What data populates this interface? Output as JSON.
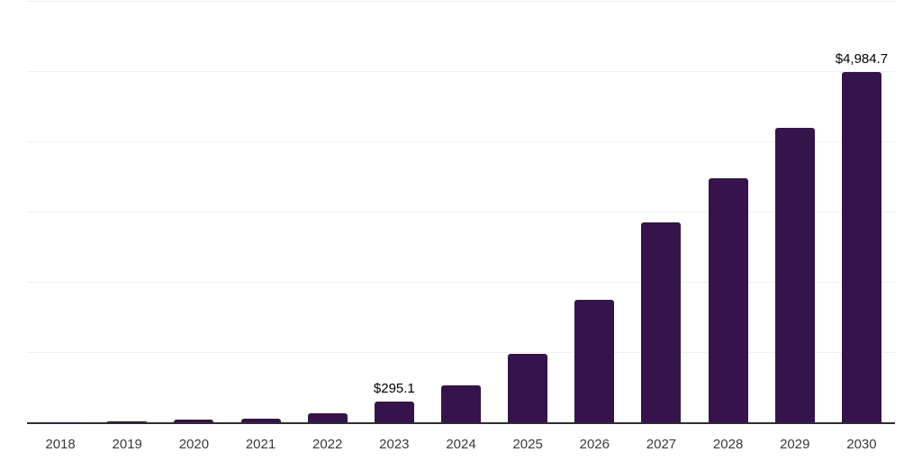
{
  "chart_data": {
    "type": "bar",
    "categories": [
      "2018",
      "2019",
      "2020",
      "2021",
      "2022",
      "2023",
      "2024",
      "2025",
      "2026",
      "2027",
      "2028",
      "2029",
      "2030"
    ],
    "values": [
      4,
      9,
      40,
      55,
      125,
      295.1,
      530,
      980,
      1740,
      2850,
      3480,
      4195,
      4984.7
    ],
    "value_labels": [
      "",
      "",
      "",
      "",
      "",
      "$295.1",
      "",
      "",
      "",
      "",
      "",
      "",
      "$4,984.7"
    ],
    "annotated_points": [
      {
        "category": "2023",
        "label": "$295.1"
      },
      {
        "category": "2030",
        "label": "$4,984.7"
      }
    ],
    "ylim": [
      0,
      6000
    ],
    "gridline_step": 1000,
    "grid": "horizontal",
    "legend": "none",
    "colors": {
      "bar": "#36134A",
      "axis_line": "#2e2e2e",
      "gridline": "#f0f0f0",
      "tick_label": "#3a3a3a",
      "value_label": "#000000",
      "background": "#ffffff"
    }
  }
}
